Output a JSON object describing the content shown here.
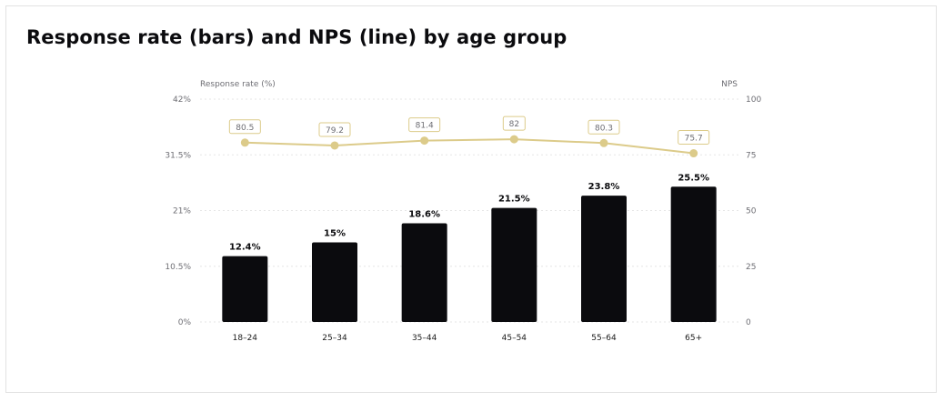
{
  "title": "Response rate (bars) and NPS (line) by age group",
  "chart_data": {
    "type": "bar",
    "title": "Response rate (bars) and NPS (line) by age group",
    "categories": [
      "18–24",
      "25–34",
      "35–44",
      "45–54",
      "55–64",
      "65+"
    ],
    "series": [
      {
        "name": "Response rate (%)",
        "type": "bar",
        "axis": "left",
        "values": [
          12.4,
          15,
          18.6,
          21.5,
          23.8,
          25.5
        ],
        "labels": [
          "12.4%",
          "15%",
          "18.6%",
          "21.5%",
          "23.8%",
          "25.5%"
        ],
        "color": "#0b0b0e"
      },
      {
        "name": "NPS",
        "type": "line",
        "axis": "right",
        "values": [
          80.5,
          79.2,
          81.4,
          82,
          80.3,
          75.7
        ],
        "labels": [
          "80.5",
          "79.2",
          "81.4",
          "82",
          "80.3",
          "75.7"
        ],
        "color": "#dccb8a"
      }
    ],
    "y_left": {
      "label": "Response rate (%)",
      "range": [
        0,
        42
      ],
      "ticks": [
        0,
        10.5,
        21,
        31.5,
        42
      ],
      "tick_labels": [
        "0%",
        "10.5%",
        "21%",
        "31.5%",
        "42%"
      ]
    },
    "y_right": {
      "label": "NPS",
      "range": [
        0,
        100
      ],
      "ticks": [
        0,
        25,
        50,
        75,
        100
      ],
      "tick_labels": [
        "0",
        "25",
        "50",
        "75",
        "100"
      ]
    },
    "grid": true,
    "grid_style": "dotted"
  }
}
